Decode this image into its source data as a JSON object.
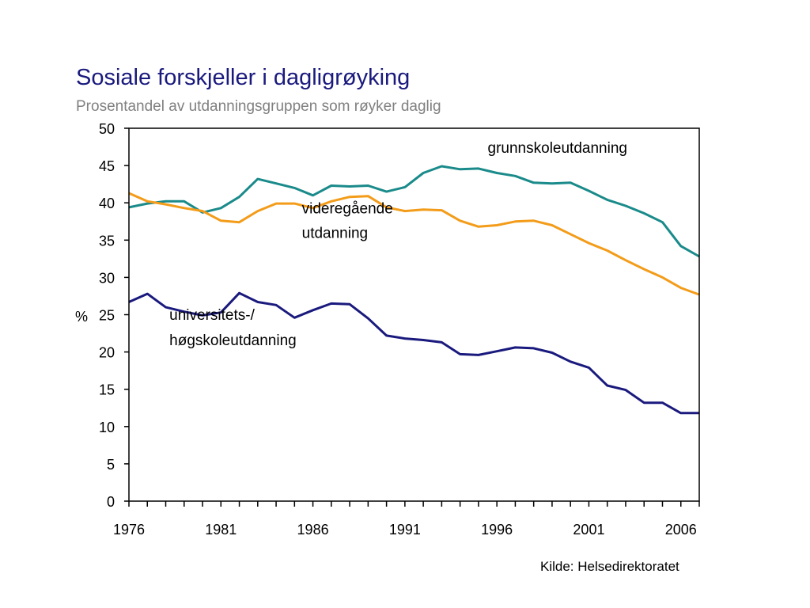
{
  "title": "Sosiale forskjeller i dagligrøyking",
  "subtitle": "Prosentandel av utdanningsgruppen som røyker daglig",
  "source": "Kilde: Helsedirektoratet",
  "chart_data": {
    "type": "line",
    "ylabel": "%",
    "ylim": [
      0,
      50
    ],
    "yticks": [
      0,
      5,
      10,
      15,
      20,
      25,
      30,
      35,
      40,
      45,
      50
    ],
    "xlim": [
      1976,
      2007
    ],
    "xtick_labels": [
      1976,
      1981,
      1986,
      1991,
      1996,
      2001,
      2006
    ],
    "grid": false,
    "x": [
      1976,
      1977,
      1978,
      1979,
      1980,
      1981,
      1982,
      1983,
      1984,
      1985,
      1986,
      1987,
      1988,
      1989,
      1990,
      1991,
      1992,
      1993,
      1994,
      1995,
      1996,
      1997,
      1998,
      1999,
      2000,
      2001,
      2002,
      2003,
      2004,
      2005,
      2006,
      2007
    ],
    "series": [
      {
        "name": "grunnskoleutdanning",
        "label_lines": [
          "grunnskoleutdanning"
        ],
        "color": "#1a8a8a",
        "values": [
          39.4,
          39.9,
          40.2,
          40.2,
          38.7,
          39.3,
          40.8,
          43.2,
          42.6,
          42.0,
          41.0,
          42.3,
          42.2,
          42.3,
          41.5,
          42.1,
          44.0,
          44.9,
          44.5,
          44.6,
          44.0,
          43.6,
          42.7,
          42.6,
          42.7,
          41.6,
          40.4,
          39.6,
          38.6,
          37.4,
          34.2,
          32.8
        ]
      },
      {
        "name": "videregående utdanning",
        "label_lines": [
          "videregående",
          "utdanning"
        ],
        "color": "#f39c1a",
        "values": [
          41.3,
          40.2,
          39.8,
          39.3,
          38.9,
          37.6,
          37.4,
          38.9,
          39.9,
          39.9,
          39.3,
          40.2,
          40.8,
          40.9,
          39.4,
          38.9,
          39.1,
          39.0,
          37.6,
          36.8,
          37.0,
          37.5,
          37.6,
          37.0,
          35.8,
          34.6,
          33.6,
          32.3,
          31.1,
          30.0,
          28.6,
          27.7
        ]
      },
      {
        "name": "universitets-/høgskoleutdanning",
        "label_lines": [
          "universitets-/",
          "høgskoleutdanning"
        ],
        "color": "#1a1a7e",
        "values": [
          26.7,
          27.8,
          26.0,
          25.4,
          24.9,
          25.3,
          27.9,
          26.7,
          26.3,
          24.6,
          25.6,
          26.5,
          26.4,
          24.5,
          22.2,
          21.8,
          21.6,
          21.3,
          19.7,
          19.6,
          20.1,
          20.6,
          20.5,
          19.9,
          18.7,
          17.9,
          15.5,
          14.9,
          13.2,
          13.2,
          11.8,
          11.8
        ]
      }
    ]
  }
}
